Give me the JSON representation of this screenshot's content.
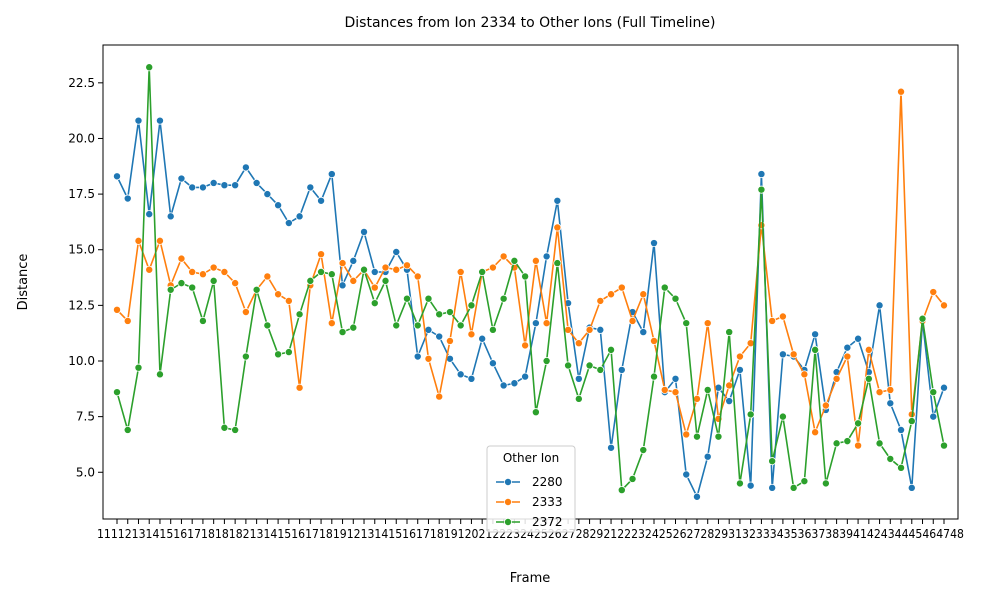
{
  "chart_data": {
    "type": "line",
    "title": "Distances from Ion 2334 to Other Ions (Full Timeline)",
    "xlabel": "Frame",
    "ylabel": "Distance",
    "ylim": [
      2.9,
      24.2
    ],
    "yticks": [
      "5.0",
      "7.5",
      "10.0",
      "12.5",
      "15.0",
      "17.5",
      "20.0",
      "22.5"
    ],
    "grid": false,
    "legend": {
      "title": "Other Ion",
      "placement": "lower center"
    },
    "x_tick_labels_text": "11112131415161718181821314151617181912131415161718191202122232425262728292122232425262728293132333435363738394142434445464748",
    "series": [
      {
        "name": "2280",
        "color": "#1f77b4",
        "values": [
          18.3,
          17.3,
          20.8,
          16.6,
          20.8,
          16.5,
          18.2,
          17.8,
          17.8,
          18.0,
          17.9,
          17.9,
          18.7,
          18.0,
          17.5,
          17.0,
          16.2,
          16.5,
          17.8,
          17.2,
          18.4,
          13.4,
          14.5,
          15.8,
          14.0,
          14.0,
          14.9,
          14.1,
          10.2,
          11.4,
          11.1,
          10.1,
          9.4,
          9.2,
          11.0,
          9.9,
          8.9,
          9.0,
          9.3,
          11.7,
          14.7,
          17.2,
          12.6,
          9.2,
          11.5,
          11.4,
          6.1,
          9.6,
          12.2,
          11.3,
          15.3,
          8.6,
          9.2,
          4.9,
          3.9,
          5.7,
          8.8,
          8.2,
          9.6,
          4.4,
          18.4,
          4.3,
          10.3,
          10.2,
          9.6,
          11.2,
          7.8,
          9.5,
          10.6,
          11.0,
          9.5,
          12.5,
          8.1,
          6.9,
          4.3,
          11.8,
          7.5,
          8.8
        ]
      },
      {
        "name": "2333",
        "color": "#ff7f0e",
        "values": [
          12.3,
          11.8,
          15.4,
          14.1,
          15.4,
          13.4,
          14.6,
          14.0,
          13.9,
          14.2,
          14.0,
          13.5,
          12.2,
          13.2,
          13.8,
          13.0,
          12.7,
          8.8,
          13.4,
          14.8,
          11.7,
          14.4,
          13.6,
          14.1,
          13.3,
          14.2,
          14.1,
          14.3,
          13.8,
          10.1,
          8.4,
          10.9,
          14.0,
          11.2,
          14.0,
          14.2,
          14.7,
          14.2,
          10.7,
          14.5,
          11.7,
          16.0,
          11.4,
          10.8,
          11.4,
          12.7,
          13.0,
          13.3,
          11.8,
          13.0,
          10.9,
          8.7,
          8.6,
          6.7,
          8.3,
          11.7,
          7.4,
          8.9,
          10.2,
          10.8,
          16.1,
          11.8,
          12.0,
          10.3,
          9.4,
          6.8,
          8.0,
          9.2,
          10.2,
          6.2,
          10.5,
          8.6,
          8.7,
          22.1,
          7.6,
          11.8,
          13.1,
          12.5
        ]
      },
      {
        "name": "2372",
        "color": "#2ca02c",
        "values": [
          8.6,
          6.9,
          9.7,
          23.2,
          9.4,
          13.2,
          13.5,
          13.3,
          11.8,
          13.6,
          7.0,
          6.9,
          10.2,
          13.2,
          11.6,
          10.3,
          10.4,
          12.1,
          13.6,
          14.0,
          13.9,
          11.3,
          11.5,
          14.1,
          12.6,
          13.6,
          11.6,
          12.8,
          11.6,
          12.8,
          12.1,
          12.2,
          11.6,
          12.5,
          14.0,
          11.4,
          12.8,
          14.5,
          13.8,
          7.7,
          10.0,
          14.4,
          9.8,
          8.3,
          9.8,
          9.6,
          10.5,
          4.2,
          4.7,
          6.0,
          9.3,
          13.3,
          12.8,
          11.7,
          6.6,
          8.7,
          6.6,
          11.3,
          4.5,
          7.6,
          17.7,
          5.5,
          7.5,
          4.3,
          4.6,
          10.5,
          4.5,
          6.3,
          6.4,
          7.2,
          9.2,
          6.3,
          5.6,
          5.2,
          7.3,
          11.9,
          8.6,
          6.2
        ]
      }
    ]
  }
}
